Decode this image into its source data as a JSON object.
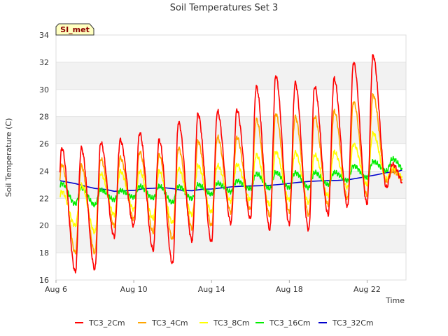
{
  "chart_data": {
    "type": "line",
    "title": "Soil Temperatures Set 3",
    "xlabel": "Time",
    "ylabel": "Soil Temperature (C)",
    "badge": "SI_met",
    "xlim": [
      0,
      18
    ],
    "ylim": [
      16,
      34
    ],
    "x_ticks": [
      {
        "label": "Aug 6",
        "value": 0
      },
      {
        "label": "Aug 10",
        "value": 4
      },
      {
        "label": "Aug 14",
        "value": 8
      },
      {
        "label": "Aug 18",
        "value": 12
      },
      {
        "label": "Aug 22",
        "value": 16
      }
    ],
    "y_ticks": [
      16,
      18,
      20,
      22,
      24,
      26,
      28,
      30,
      32,
      34
    ],
    "grid": "horizontal bands",
    "legend_position": "bottom",
    "x_unit": "days since Aug 6",
    "series": [
      {
        "name": "TC3_2Cm",
        "color": "#ff0000",
        "daily_max": [
          25.7,
          25.7,
          26.1,
          26.3,
          26.8,
          26.3,
          27.6,
          28.2,
          28.4,
          28.5,
          30.2,
          31.0,
          30.5,
          30.2,
          30.8,
          32.0,
          32.5,
          24.5
        ],
        "daily_min": [
          18.7,
          16.6,
          16.8,
          19.2,
          20.0,
          18.2,
          17.2,
          18.9,
          18.8,
          20.2,
          20.5,
          19.7,
          20.1,
          19.7,
          20.8,
          21.4,
          21.6,
          22.8
        ]
      },
      {
        "name": "TC3_4Cm",
        "color": "#ffa500",
        "daily_max": [
          24.5,
          24.4,
          24.9,
          25.0,
          25.4,
          25.2,
          25.7,
          26.2,
          26.5,
          26.5,
          27.8,
          28.2,
          28.0,
          28.0,
          28.4,
          29.1,
          29.6,
          24.0
        ],
        "daily_min": [
          20.0,
          18.0,
          18.0,
          20.0,
          20.5,
          19.5,
          19.0,
          19.8,
          20.0,
          21.0,
          21.2,
          20.7,
          21.0,
          20.8,
          21.5,
          22.0,
          22.2,
          23.2
        ]
      },
      {
        "name": "TC3_8Cm",
        "color": "#ffff00",
        "daily_max": [
          22.5,
          23.0,
          23.8,
          24.0,
          24.0,
          24.0,
          24.2,
          24.4,
          24.4,
          24.5,
          25.2,
          25.4,
          25.4,
          25.2,
          25.4,
          26.0,
          26.8,
          24.2
        ],
        "daily_min": [
          21.0,
          20.0,
          19.5,
          20.8,
          21.2,
          20.5,
          20.2,
          20.8,
          21.0,
          21.8,
          21.9,
          21.5,
          21.9,
          21.7,
          22.2,
          22.8,
          23.0,
          23.4
        ]
      },
      {
        "name": "TC3_16Cm",
        "color": "#00ee00",
        "daily_max": [
          23.1,
          22.8,
          22.6,
          22.6,
          22.9,
          22.9,
          22.9,
          23.0,
          23.1,
          23.3,
          23.8,
          23.9,
          23.9,
          23.9,
          23.9,
          24.4,
          24.7,
          24.9
        ],
        "daily_min": [
          22.3,
          21.6,
          21.5,
          21.9,
          22.1,
          22.0,
          21.7,
          22.0,
          22.3,
          22.5,
          22.7,
          22.7,
          22.8,
          22.8,
          23.0,
          23.3,
          23.5,
          24.0
        ]
      },
      {
        "name": "TC3_32Cm",
        "color": "#0000cc",
        "x": [
          0.2,
          1.0,
          1.5,
          2.0,
          2.6,
          3.0,
          3.5,
          4.0,
          4.5,
          5.0,
          5.5,
          6.0,
          6.5,
          7.0,
          7.5,
          8.0,
          8.5,
          9.0,
          9.5,
          10.0,
          10.5,
          11.0,
          11.5,
          12.0,
          12.5,
          13.0,
          13.5,
          14.0,
          14.5,
          15.0,
          15.5,
          16.0,
          16.5,
          17.0,
          17.5,
          17.8
        ],
        "y": [
          23.3,
          23.05,
          22.85,
          22.7,
          22.65,
          22.55,
          22.6,
          22.6,
          22.7,
          22.7,
          22.75,
          22.7,
          22.6,
          22.6,
          22.7,
          22.7,
          22.75,
          22.8,
          22.85,
          22.9,
          22.95,
          23.0,
          23.05,
          23.1,
          23.15,
          23.2,
          23.25,
          23.3,
          23.35,
          23.4,
          23.5,
          23.6,
          23.7,
          23.85,
          23.9,
          24.1
        ]
      }
    ]
  }
}
